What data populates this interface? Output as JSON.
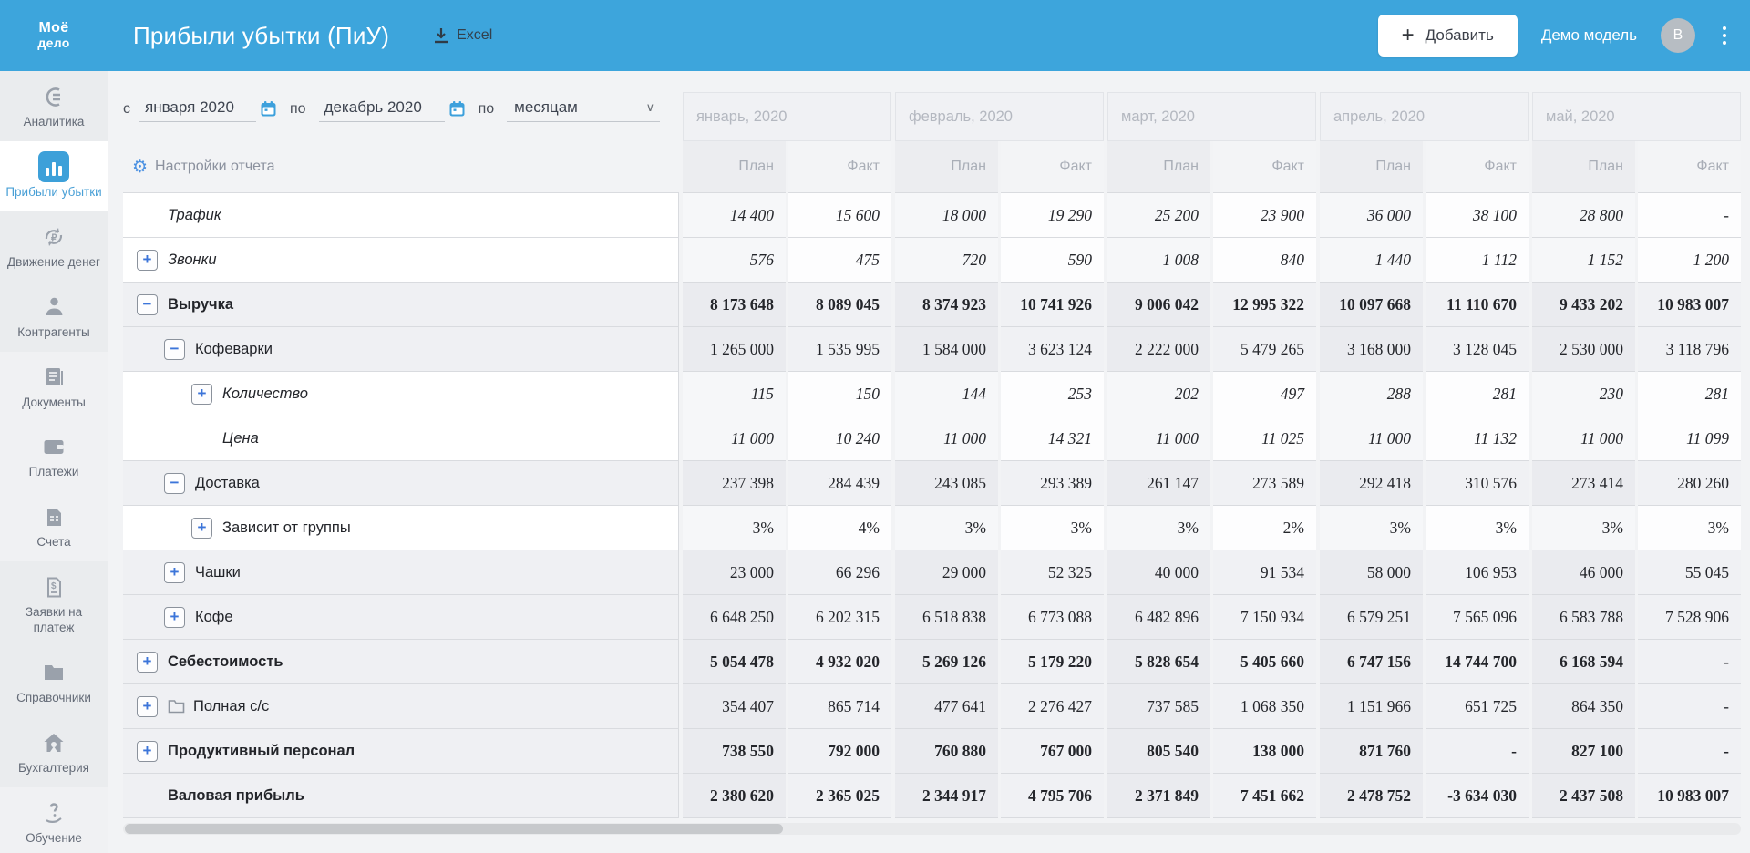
{
  "colors": {
    "header_blue": "#3da5dc",
    "accent_blue": "#3f9fd8",
    "link_blue": "#3b74d9",
    "row_border": "#d9dbdf"
  },
  "header": {
    "logo_line1": "Моё",
    "logo_line2": "дело",
    "title": "Прибыли убытки (ПиУ)",
    "excel_label": "Excel",
    "add_label": "Добавить",
    "add_plus": "+",
    "user_label": "Демо модель",
    "avatar_letter": "В"
  },
  "sidebar": {
    "items": [
      {
        "id": "analytics",
        "label": "Аналитика",
        "icon": "analytics-icon",
        "active": false,
        "shade": "a"
      },
      {
        "id": "profit-loss",
        "label": "Прибыли убытки",
        "icon": "bar-chart-icon",
        "active": true,
        "shade": "w"
      },
      {
        "id": "cash-flow",
        "label": "Движение денег",
        "icon": "cash-flow-icon",
        "active": false,
        "shade": "a"
      },
      {
        "id": "counterparties",
        "label": "Контрагенты",
        "icon": "person-icon",
        "active": false,
        "shade": "a"
      },
      {
        "id": "documents",
        "label": "Документы",
        "icon": "document-icon",
        "active": false,
        "shade": "b"
      },
      {
        "id": "payments",
        "label": "Платежи",
        "icon": "wallet-icon",
        "active": false,
        "shade": "b"
      },
      {
        "id": "invoices",
        "label": "Счета",
        "icon": "invoice-icon",
        "active": false,
        "shade": "b"
      },
      {
        "id": "payment-requests",
        "label": "Заявки на платеж",
        "icon": "payment-request-icon",
        "active": false,
        "shade": "a"
      },
      {
        "id": "catalogs",
        "label": "Справочники",
        "icon": "folder-icon",
        "active": false,
        "shade": "a"
      },
      {
        "id": "accounting",
        "label": "Бухгалтерия",
        "icon": "home-icon",
        "active": false,
        "shade": "a"
      },
      {
        "id": "training",
        "label": "Обучение",
        "icon": "question-hand-icon",
        "active": false,
        "shade": "b",
        "pinned_bottom": true
      }
    ]
  },
  "filters": {
    "from_label": "с",
    "from_value": "января 2020",
    "to_label": "по",
    "to_value": "декабрь 2020",
    "period_label": "по",
    "period_value": "месяцам",
    "settings_label": "Настройки отчета"
  },
  "icons": {
    "plus": "+",
    "minus": "−",
    "chevron_down": "∨",
    "gear": "⚙",
    "dash": "-"
  },
  "table": {
    "months": [
      "январь, 2020",
      "февраль, 2020",
      "март, 2020",
      "апрель, 2020",
      "май, 2020"
    ],
    "subcolumns": [
      "План",
      "Факт"
    ],
    "rows": [
      {
        "label": "Трафик",
        "level": 0,
        "expander": null,
        "italic": true,
        "bold": false,
        "shade": "white",
        "folder": false,
        "values": [
          "14 400",
          "15 600",
          "18 000",
          "19 290",
          "25 200",
          "23 900",
          "36 000",
          "38 100",
          "28 800",
          "-"
        ]
      },
      {
        "label": "Звонки",
        "level": 0,
        "expander": "plus",
        "italic": true,
        "bold": false,
        "shade": "white",
        "folder": false,
        "values": [
          "576",
          "475",
          "720",
          "590",
          "1 008",
          "840",
          "1 440",
          "1 112",
          "1 152",
          "1 200"
        ]
      },
      {
        "label": "Выручка",
        "level": 0,
        "expander": "minus",
        "italic": false,
        "bold": true,
        "shade": "gray",
        "folder": false,
        "values": [
          "8 173 648",
          "8 089 045",
          "8 374 923",
          "10 741 926",
          "9 006 042",
          "12 995 322",
          "10 097 668",
          "11 110 670",
          "9 433 202",
          "10 983 007"
        ]
      },
      {
        "label": "Кофеварки",
        "level": 1,
        "expander": "minus",
        "italic": false,
        "bold": false,
        "shade": "gray",
        "folder": false,
        "values": [
          "1 265 000",
          "1 535 995",
          "1 584 000",
          "3 623 124",
          "2 222 000",
          "5 479 265",
          "3 168 000",
          "3 128 045",
          "2 530 000",
          "3 118 796"
        ]
      },
      {
        "label": "Количество",
        "level": 2,
        "expander": "plus",
        "italic": true,
        "bold": false,
        "shade": "white",
        "folder": false,
        "values": [
          "115",
          "150",
          "144",
          "253",
          "202",
          "497",
          "288",
          "281",
          "230",
          "281"
        ]
      },
      {
        "label": "Цена",
        "level": 2,
        "expander": null,
        "italic": true,
        "bold": false,
        "shade": "white",
        "folder": false,
        "values": [
          "11 000",
          "10 240",
          "11 000",
          "14 321",
          "11 000",
          "11 025",
          "11 000",
          "11 132",
          "11 000",
          "11 099"
        ]
      },
      {
        "label": "Доставка",
        "level": 1,
        "expander": "minus",
        "italic": false,
        "bold": false,
        "shade": "gray",
        "folder": false,
        "values": [
          "237 398",
          "284 439",
          "243 085",
          "293 389",
          "261 147",
          "273 589",
          "292 418",
          "310 576",
          "273 414",
          "280 260"
        ]
      },
      {
        "label": "Зависит от группы",
        "level": 2,
        "expander": "plus",
        "italic": false,
        "bold": false,
        "shade": "white",
        "folder": false,
        "values": [
          "3%",
          "4%",
          "3%",
          "3%",
          "3%",
          "2%",
          "3%",
          "3%",
          "3%",
          "3%"
        ]
      },
      {
        "label": "Чашки",
        "level": 1,
        "expander": "plus",
        "italic": false,
        "bold": false,
        "shade": "gray",
        "folder": false,
        "values": [
          "23 000",
          "66 296",
          "29 000",
          "52 325",
          "40 000",
          "91 534",
          "58 000",
          "106 953",
          "46 000",
          "55 045"
        ]
      },
      {
        "label": "Кофе",
        "level": 1,
        "expander": "plus",
        "italic": false,
        "bold": false,
        "shade": "gray",
        "folder": false,
        "values": [
          "6 648 250",
          "6 202 315",
          "6 518 838",
          "6 773 088",
          "6 482 896",
          "7 150 934",
          "6 579 251",
          "7 565 096",
          "6 583 788",
          "7 528 906"
        ]
      },
      {
        "label": "Себестоимость",
        "level": 0,
        "expander": "plus",
        "italic": false,
        "bold": true,
        "shade": "gray",
        "folder": false,
        "values": [
          "5 054 478",
          "4 932 020",
          "5 269 126",
          "5 179 220",
          "5 828 654",
          "5 405 660",
          "6 747 156",
          "14 744 700",
          "6 168 594",
          "-"
        ]
      },
      {
        "label": "Полная с/с",
        "level": 0,
        "expander": "plus",
        "italic": false,
        "bold": false,
        "shade": "gray",
        "folder": true,
        "values": [
          "354 407",
          "865 714",
          "477 641",
          "2 276 427",
          "737 585",
          "1 068 350",
          "1 151 966",
          "651 725",
          "864 350",
          "-"
        ]
      },
      {
        "label": "Продуктивный персонал",
        "level": 0,
        "expander": "plus",
        "italic": false,
        "bold": true,
        "shade": "gray",
        "folder": false,
        "values": [
          "738 550",
          "792 000",
          "760 880",
          "767 000",
          "805 540",
          "138 000",
          "871 760",
          "-",
          "827 100",
          "-"
        ]
      },
      {
        "label": "Валовая прибыль",
        "level": 0,
        "expander": null,
        "italic": false,
        "bold": true,
        "shade": "gray",
        "folder": false,
        "values": [
          "2 380 620",
          "2 365 025",
          "2 344 917",
          "4 795 706",
          "2 371 849",
          "7 451 662",
          "2 478 752",
          "-3 634 030",
          "2 437 508",
          "10 983 007"
        ]
      }
    ]
  }
}
